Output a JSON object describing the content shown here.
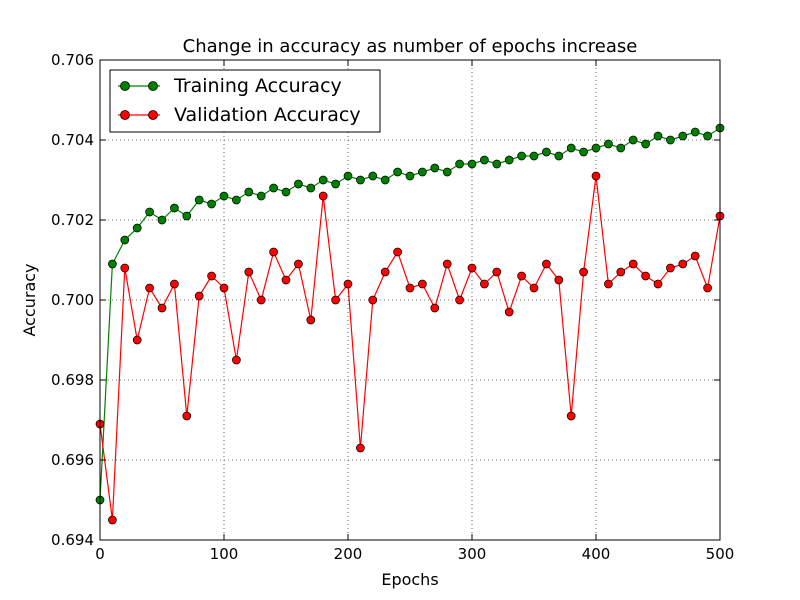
{
  "chart_data": {
    "type": "line",
    "title": "Change in accuracy as number of epochs increase",
    "xlabel": "Epochs",
    "ylabel": "Accuracy",
    "xlim": [
      0,
      500
    ],
    "ylim": [
      0.694,
      0.706
    ],
    "xticks": [
      0,
      100,
      200,
      300,
      400,
      500
    ],
    "yticks": [
      0.694,
      0.696,
      0.698,
      0.7,
      0.702,
      0.704,
      0.706
    ],
    "ytick_labels": [
      "0.694",
      "0.696",
      "0.698",
      "0.700",
      "0.702",
      "0.704",
      "0.706"
    ],
    "grid": true,
    "legend_position": "top-left",
    "x": [
      0,
      10,
      20,
      30,
      40,
      50,
      60,
      70,
      80,
      90,
      100,
      110,
      120,
      130,
      140,
      150,
      160,
      170,
      180,
      190,
      200,
      210,
      220,
      230,
      240,
      250,
      260,
      270,
      280,
      290,
      300,
      310,
      320,
      330,
      340,
      350,
      360,
      370,
      380,
      390,
      400,
      410,
      420,
      430,
      440,
      450,
      460,
      470,
      480,
      490,
      500
    ],
    "series": [
      {
        "name": "Training Accuracy",
        "color": "#008000",
        "marker": "circle",
        "values": [
          0.695,
          0.7009,
          0.7015,
          0.7018,
          0.7022,
          0.702,
          0.7023,
          0.7021,
          0.7025,
          0.7024,
          0.7026,
          0.7025,
          0.7027,
          0.7026,
          0.7028,
          0.7027,
          0.7029,
          0.7028,
          0.703,
          0.7029,
          0.7031,
          0.703,
          0.7031,
          0.703,
          0.7032,
          0.7031,
          0.7032,
          0.7033,
          0.7032,
          0.7034,
          0.7034,
          0.7035,
          0.7034,
          0.7035,
          0.7036,
          0.7036,
          0.7037,
          0.7036,
          0.7038,
          0.7037,
          0.7038,
          0.7039,
          0.7038,
          0.704,
          0.7039,
          0.7041,
          0.704,
          0.7041,
          0.7042,
          0.7041,
          0.7043
        ]
      },
      {
        "name": "Validation Accuracy",
        "color": "#ff0000",
        "marker": "circle",
        "values": [
          0.6969,
          0.6945,
          0.7008,
          0.699,
          0.7003,
          0.6998,
          0.7004,
          0.6971,
          0.7001,
          0.7006,
          0.7003,
          0.6985,
          0.7007,
          0.7,
          0.7012,
          0.7005,
          0.7009,
          0.6995,
          0.7026,
          0.7,
          0.7004,
          0.6963,
          0.7,
          0.7007,
          0.7012,
          0.7003,
          0.7004,
          0.6998,
          0.7009,
          0.7,
          0.7008,
          0.7004,
          0.7007,
          0.6997,
          0.7006,
          0.7003,
          0.7009,
          0.7005,
          0.6971,
          0.7007,
          0.7031,
          0.7004,
          0.7007,
          0.7009,
          0.7006,
          0.7004,
          0.7008,
          0.7009,
          0.7011,
          0.7003,
          0.7021
        ]
      }
    ]
  }
}
